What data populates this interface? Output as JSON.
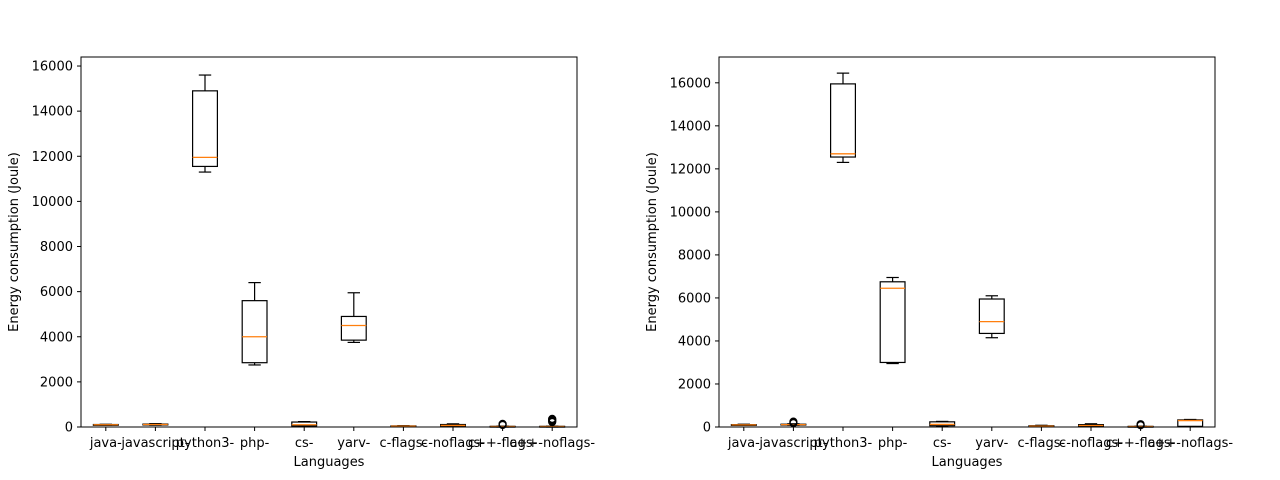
{
  "chart_data": [
    {
      "type": "box",
      "xlabel": "Languages",
      "ylabel": "Energy consumption (Joule)",
      "ylim": [
        0,
        16400
      ],
      "yticks": [
        0,
        2000,
        4000,
        6000,
        8000,
        10000,
        12000,
        14000,
        16000
      ],
      "categories": [
        "java-",
        "javascript-",
        "python3-",
        "php-",
        "cs-",
        "yarv-",
        "c-flags-",
        "c-noflags-",
        "c++-flags-",
        "c++-noflags-"
      ],
      "boxes": [
        {
          "whislo": 80,
          "q1": 90,
          "med": 100,
          "q3": 110,
          "whishi": 120,
          "fliers": []
        },
        {
          "whislo": 80,
          "q1": 90,
          "med": 110,
          "q3": 130,
          "whishi": 150,
          "fliers": []
        },
        {
          "whislo": 11300,
          "q1": 11550,
          "med": 11950,
          "q3": 14900,
          "whishi": 15600,
          "fliers": []
        },
        {
          "whislo": 2750,
          "q1": 2850,
          "med": 4000,
          "q3": 5600,
          "whishi": 6400,
          "fliers": []
        },
        {
          "whislo": 30,
          "q1": 50,
          "med": 100,
          "q3": 220,
          "whishi": 240,
          "fliers": []
        },
        {
          "whislo": 3750,
          "q1": 3850,
          "med": 4500,
          "q3": 4900,
          "whishi": 5950,
          "fliers": []
        },
        {
          "whislo": 20,
          "q1": 30,
          "med": 40,
          "q3": 50,
          "whishi": 60,
          "fliers": []
        },
        {
          "whislo": 30,
          "q1": 50,
          "med": 70,
          "q3": 110,
          "whishi": 140,
          "fliers": []
        },
        {
          "whislo": 0,
          "q1": 10,
          "med": 20,
          "q3": 30,
          "whishi": 40,
          "fliers": [
            90,
            120,
            140
          ]
        },
        {
          "whislo": 0,
          "q1": 10,
          "med": 20,
          "q3": 30,
          "whishi": 40,
          "fliers": [
            220,
            260,
            300,
            330,
            360
          ]
        }
      ]
    },
    {
      "type": "box",
      "xlabel": "Languages",
      "ylabel": "Energy consumption (Joule)",
      "ylim": [
        0,
        17200
      ],
      "yticks": [
        0,
        2000,
        4000,
        6000,
        8000,
        10000,
        12000,
        14000,
        16000
      ],
      "categories": [
        "java-",
        "javascript-",
        "python3-",
        "php-",
        "cs-",
        "yarv-",
        "c-flags-",
        "c-noflags-",
        "c++-flags-",
        "c++-noflags-"
      ],
      "boxes": [
        {
          "whislo": 80,
          "q1": 90,
          "med": 100,
          "q3": 110,
          "whishi": 130,
          "fliers": []
        },
        {
          "whislo": 80,
          "q1": 90,
          "med": 110,
          "q3": 130,
          "whishi": 150,
          "fliers": [
            180,
            220,
            250
          ]
        },
        {
          "whislo": 12300,
          "q1": 12550,
          "med": 12700,
          "q3": 15950,
          "whishi": 16450,
          "fliers": []
        },
        {
          "whislo": 2950,
          "q1": 3000,
          "med": 6450,
          "q3": 6750,
          "whishi": 6950,
          "fliers": []
        },
        {
          "whislo": 30,
          "q1": 60,
          "med": 120,
          "q3": 240,
          "whishi": 260,
          "fliers": []
        },
        {
          "whislo": 4150,
          "q1": 4350,
          "med": 4900,
          "q3": 5950,
          "whishi": 6100,
          "fliers": []
        },
        {
          "whislo": 20,
          "q1": 30,
          "med": 40,
          "q3": 60,
          "whishi": 80,
          "fliers": []
        },
        {
          "whislo": 30,
          "q1": 50,
          "med": 70,
          "q3": 110,
          "whishi": 150,
          "fliers": []
        },
        {
          "whislo": 0,
          "q1": 10,
          "med": 20,
          "q3": 30,
          "whishi": 40,
          "fliers": [
            80,
            110,
            130
          ]
        },
        {
          "whislo": 20,
          "q1": 30,
          "med": 300,
          "q3": 330,
          "whishi": 350,
          "fliers": []
        }
      ]
    }
  ]
}
